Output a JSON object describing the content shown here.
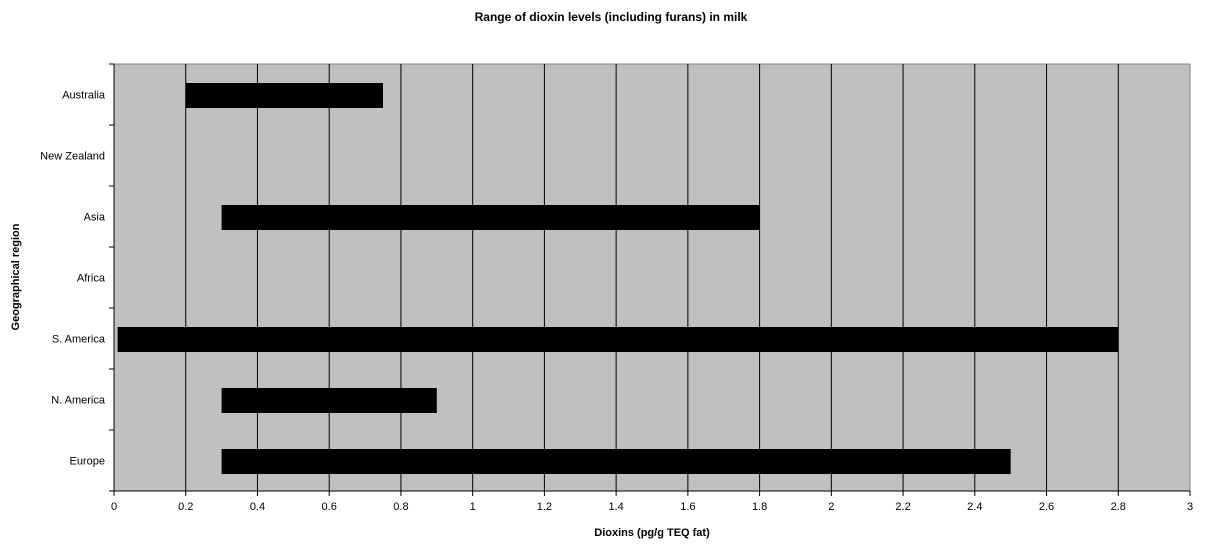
{
  "chart_data": {
    "type": "bar",
    "orientation": "horizontal",
    "title": "Range of dioxin levels (including furans) in milk",
    "xlabel": "Dioxins (pg/g TEQ fat)",
    "ylabel": "Geographical region",
    "xlim": [
      0,
      3
    ],
    "xticks": [
      "0",
      "0.2",
      "0.4",
      "0.6",
      "0.8",
      "1",
      "1.2",
      "1.4",
      "1.6",
      "1.8",
      "2",
      "2.2",
      "2.4",
      "2.6",
      "2.8",
      "3"
    ],
    "grid": "vertical",
    "legend": "none",
    "categories": [
      "Australia",
      "New Zealand",
      "Asia",
      "Africa",
      "S. America",
      "N. America",
      "Europe"
    ],
    "ranges": [
      {
        "category": "Australia",
        "min": 0.2,
        "max": 0.75
      },
      {
        "category": "New Zealand",
        "min": null,
        "max": null
      },
      {
        "category": "Asia",
        "min": 0.3,
        "max": 1.8
      },
      {
        "category": "Africa",
        "min": null,
        "max": null
      },
      {
        "category": "S. America",
        "min": 0.01,
        "max": 2.8
      },
      {
        "category": "N. America",
        "min": 0.3,
        "max": 0.9
      },
      {
        "category": "Europe",
        "min": 0.3,
        "max": 2.5
      }
    ],
    "colors": {
      "plot_background": "#c0c0c0",
      "bar": "#000000",
      "grid": "#000000"
    }
  }
}
